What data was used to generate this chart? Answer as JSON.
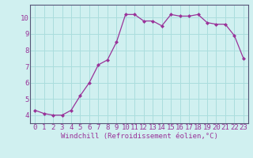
{
  "x": [
    0,
    1,
    2,
    3,
    4,
    5,
    6,
    7,
    8,
    9,
    10,
    11,
    12,
    13,
    14,
    15,
    16,
    17,
    18,
    19,
    20,
    21,
    22,
    23
  ],
  "y": [
    4.3,
    4.1,
    4.0,
    4.0,
    4.3,
    5.2,
    6.0,
    7.1,
    7.4,
    8.5,
    10.2,
    10.2,
    9.8,
    9.8,
    9.5,
    10.2,
    10.1,
    10.1,
    10.2,
    9.7,
    9.6,
    9.6,
    8.9,
    7.5
  ],
  "line_color": "#993399",
  "marker": "D",
  "marker_size": 2,
  "bg_color": "#d0f0f0",
  "grid_color": "#aadddd",
  "xlabel": "Windchill (Refroidissement éolien,°C)",
  "ylabel": "",
  "xlim": [
    -0.5,
    23.5
  ],
  "ylim": [
    3.5,
    10.8
  ],
  "yticks": [
    4,
    5,
    6,
    7,
    8,
    9,
    10
  ],
  "xticks": [
    0,
    1,
    2,
    3,
    4,
    5,
    6,
    7,
    8,
    9,
    10,
    11,
    12,
    13,
    14,
    15,
    16,
    17,
    18,
    19,
    20,
    21,
    22,
    23
  ],
  "spine_color": "#555577",
  "tick_color": "#993399",
  "label_fontsize": 6.5,
  "axis_tick_fontsize": 6.5
}
